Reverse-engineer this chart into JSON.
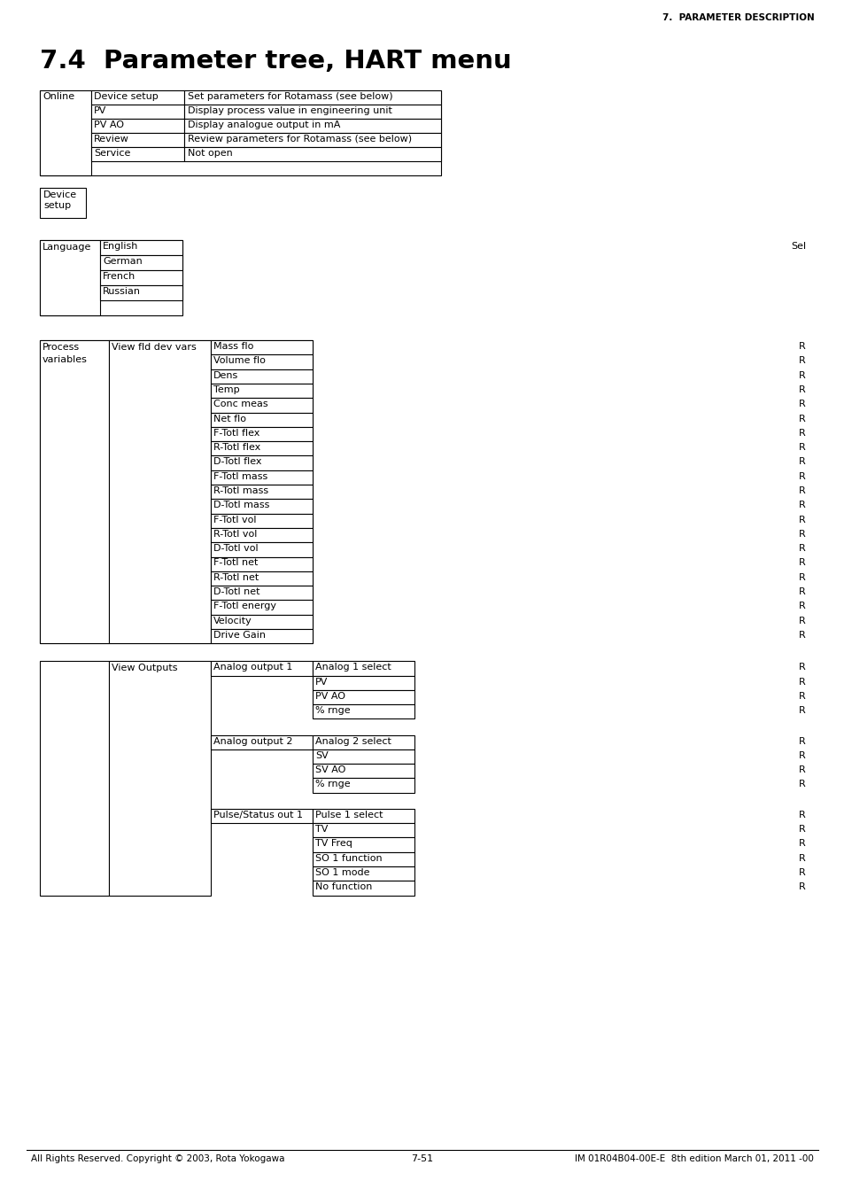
{
  "page_header": "7.  PARAMETER DESCRIPTION",
  "section_title": "7.4  Parameter tree, HART menu",
  "footer_left": "All Rights Reserved. Copyright © 2003, Rota Yokogawa",
  "footer_center": "7-51",
  "footer_right": "IM 01R04B04-00E-E  8th edition March 01, 2011 -00",
  "table1_rows": [
    [
      "Device setup",
      "Set parameters for Rotamass (see below)"
    ],
    [
      "PV",
      "Display process value in engineering unit"
    ],
    [
      "PV AO",
      "Display analogue output in mA"
    ],
    [
      "Review",
      "Review parameters for Rotamass (see below)"
    ],
    [
      "Service",
      "Not open"
    ]
  ],
  "lang_rows": [
    "English",
    "German",
    "French",
    "Russian"
  ],
  "proc_rows": [
    "Mass flo",
    "Volume flo",
    "Dens",
    "Temp",
    "Conc meas",
    "Net flo",
    "F-Totl flex",
    "R-Totl flex",
    "D-Totl flex",
    "F-Totl mass",
    "R-Totl mass",
    "D-Totl mass",
    "F-Totl vol",
    "R-Totl vol",
    "D-Totl vol",
    "F-Totl net",
    "R-Totl net",
    "D-Totl net",
    "F-Totl energy",
    "Velocity",
    "Drive Gain"
  ],
  "output_groups": [
    {
      "col3": "Analog output 1",
      "col4_first": "Analog 1 select",
      "col4_rest": [
        "PV",
        "PV AO",
        "% rnge"
      ]
    },
    {
      "col3": "Analog output 2",
      "col4_first": "Analog 2 select",
      "col4_rest": [
        "SV",
        "SV AO",
        "% rnge"
      ]
    },
    {
      "col3": "Pulse/Status out 1",
      "col4_first": "Pulse 1 select",
      "col4_rest": [
        "TV",
        "TV Freq",
        "SO 1 function",
        "SO 1 mode",
        "No function"
      ]
    }
  ]
}
